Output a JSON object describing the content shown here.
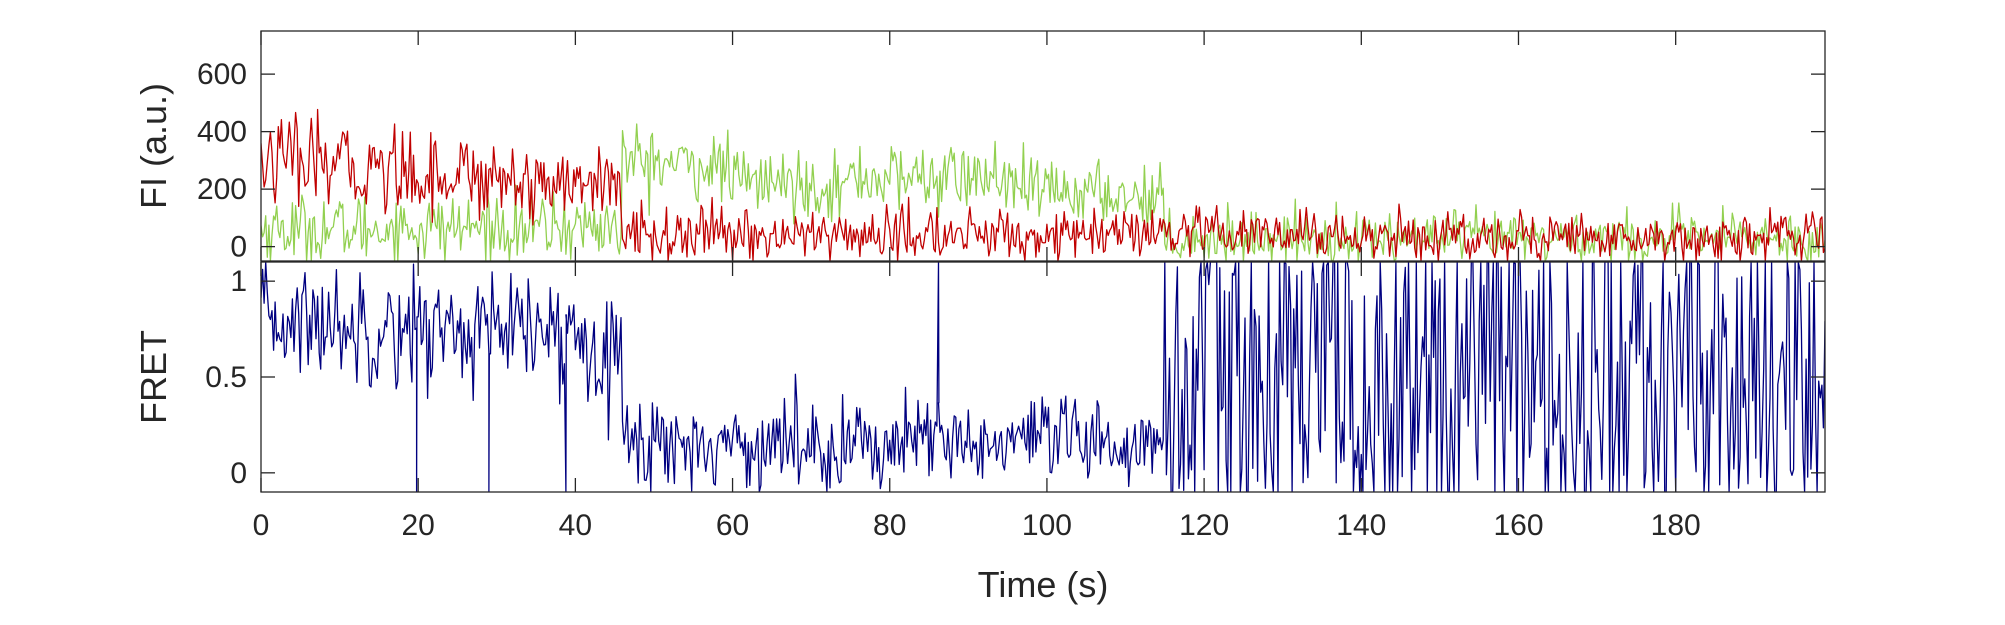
{
  "chart_data": [
    {
      "type": "line",
      "panel": "top",
      "title": "",
      "xlabel": "",
      "ylabel": "FI (a.u.)",
      "xlim": [
        0,
        199
      ],
      "ylim": [
        -50,
        750
      ],
      "yticks": [
        0,
        200,
        400,
        600
      ],
      "ytick_labels": [
        "0",
        "200",
        "400",
        "600"
      ],
      "grid": false,
      "series": [
        {
          "color": "#92d050",
          "segments": [
            {
              "t": [
                0,
                46
              ],
              "mean": [
                60,
                70
              ],
              "noise": 60
            },
            {
              "t": [
                46,
                60
              ],
              "mean": [
                300,
                270
              ],
              "noise": 60
            },
            {
              "t": [
                60,
                75
              ],
              "mean": [
                230,
                210
              ],
              "noise": 55
            },
            {
              "t": [
                75,
                95
              ],
              "mean": [
                240,
                240
              ],
              "noise": 60
            },
            {
              "t": [
                95,
                115
              ],
              "mean": [
                200,
                175
              ],
              "noise": 55
            },
            {
              "t": [
                115,
                199
              ],
              "mean": [
                30,
                30
              ],
              "noise": 45
            }
          ]
        },
        {
          "color": "#c00000",
          "segments": [
            {
              "t": [
                0,
                46
              ],
              "mean": [
                300,
                210
              ],
              "noise": 75
            },
            {
              "t": [
                46,
                115
              ],
              "mean": [
                40,
                40
              ],
              "noise": 45
            },
            {
              "t": [
                115,
                199
              ],
              "mean": [
                40,
                30
              ],
              "noise": 45
            }
          ]
        }
      ]
    },
    {
      "type": "line",
      "panel": "bottom",
      "title": "",
      "xlabel": "Time (s)",
      "ylabel": "FRET",
      "xlim": [
        0,
        199
      ],
      "ylim": [
        -0.1,
        1.1
      ],
      "yticks": [
        0,
        0.5,
        1
      ],
      "ytick_labels": [
        "0",
        "0.5",
        "1"
      ],
      "xticks": [
        0,
        20,
        40,
        60,
        80,
        100,
        120,
        140,
        160,
        180
      ],
      "xtick_labels": [
        "0",
        "20",
        "40",
        "60",
        "80",
        "100",
        "120",
        "140",
        "160",
        "180"
      ],
      "grid": false,
      "series": [
        {
          "color": "#000080",
          "segments": [
            {
              "t": [
                0,
                46
              ],
              "mean": [
                0.8,
                0.7
              ],
              "noise": 0.15
            },
            {
              "t": [
                46,
                115
              ],
              "mean": [
                0.15,
                0.15
              ],
              "noise": 0.12
            },
            {
              "t": [
                115,
                199
              ],
              "mean": [
                0.5,
                0.5
              ],
              "noise": 0.6
            }
          ],
          "spikes": [
            {
              "t": 19.8,
              "value": -0.1
            },
            {
              "t": 29.0,
              "value": -0.1
            },
            {
              "t": 38.8,
              "value": -0.1
            },
            {
              "t": 86.2,
              "value": 1.1
            }
          ]
        }
      ]
    }
  ]
}
